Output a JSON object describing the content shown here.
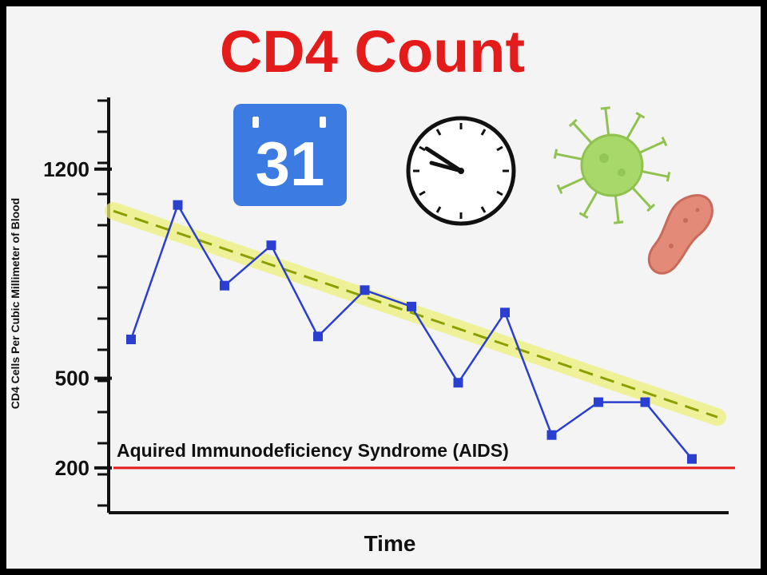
{
  "chart_data": {
    "type": "line",
    "title": "CD4 Count",
    "xlabel": "Time",
    "ylabel": "CD4 Cells Per Cubic Millimeter of Blood",
    "ylim": [
      50,
      1440
    ],
    "yticks": [
      {
        "value": 1200,
        "label": "1200"
      },
      {
        "value": 500,
        "label": "500"
      },
      {
        "value": 200,
        "label": "200"
      }
    ],
    "grid": false,
    "series": [
      {
        "values": [
          630,
          1080,
          810,
          945,
          640,
          795,
          740,
          485,
          720,
          310,
          420,
          420,
          230
        ],
        "color": "#2a3fd0"
      }
    ],
    "trend": {
      "start": 1060,
      "end": 370,
      "color": "#8aa000",
      "band_color": "#eef07a"
    },
    "threshold": {
      "value": 200,
      "label": "Aquired Immunodeficiency Syndrome (AIDS)",
      "color": "#e31b1b"
    }
  },
  "decorations": {
    "calendar": {
      "icon": "calendar-icon",
      "day": "31",
      "color": "#3b7be2"
    },
    "clock": {
      "icon": "clock-icon"
    },
    "virus": {
      "icon": "virus-icon",
      "color": "#a8d86a"
    },
    "bacterium": {
      "icon": "bacterium-icon",
      "color": "#e48a78"
    }
  }
}
